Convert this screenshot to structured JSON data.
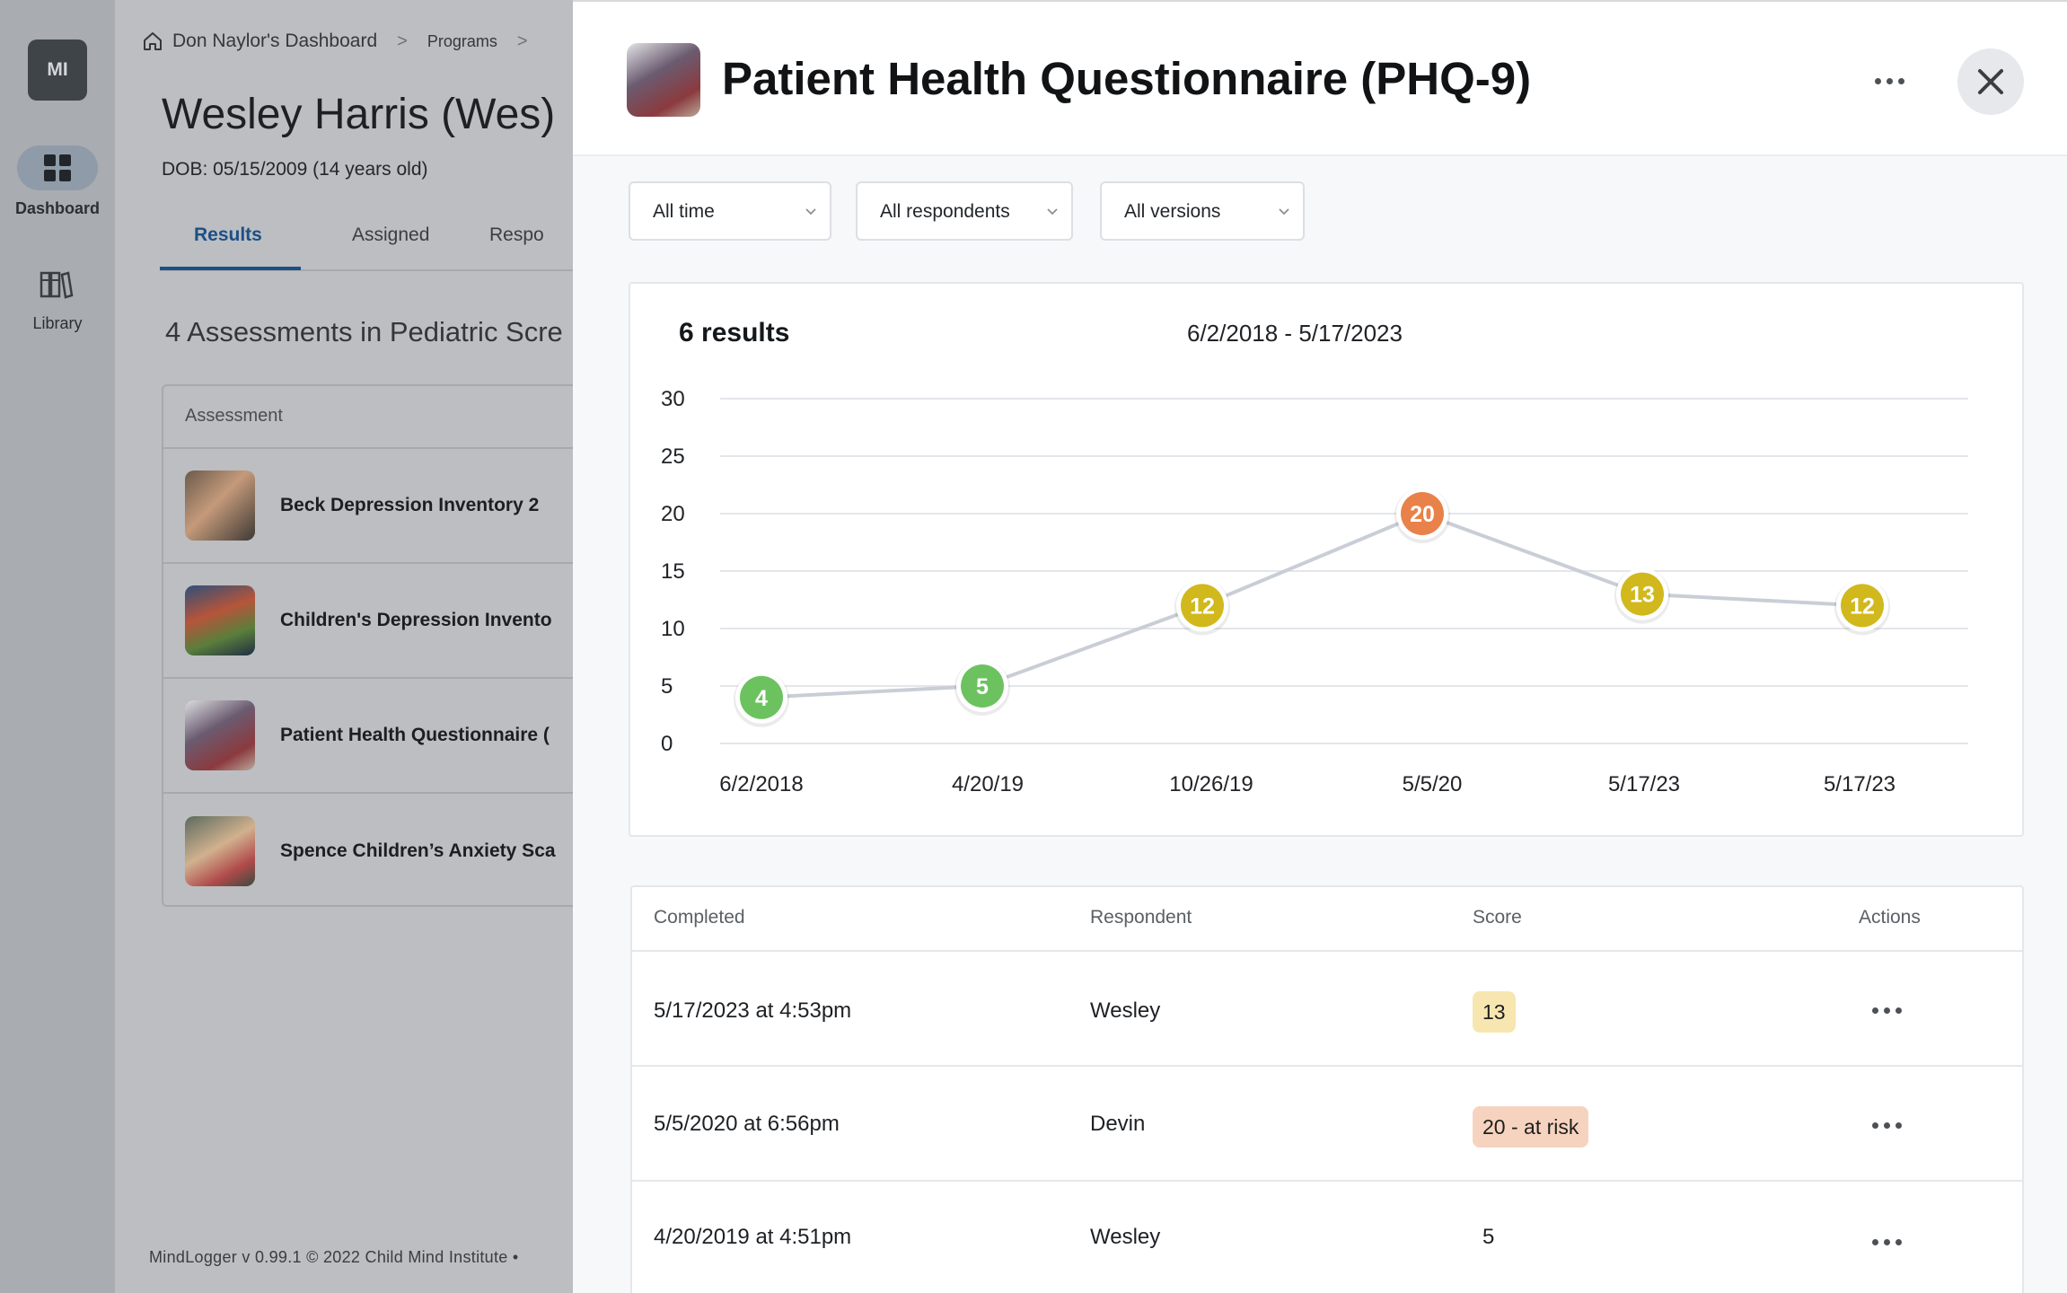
{
  "rail": {
    "avatar": "MI",
    "dashboard_label": "Dashboard",
    "library_label": "Library"
  },
  "background_page": {
    "breadcrumb_home": "Don Naylor's Dashboard",
    "breadcrumb_programs": "Programs",
    "patient_name": "Wesley Harris (Wes)",
    "dob": "DOB: 05/15/2009 (14 years old)",
    "tabs": [
      "Results",
      "Assigned",
      "Respo"
    ],
    "section_title": "4 Assessments in Pediatric Scre",
    "table_header": "Assessment",
    "assessments": [
      "Beck Depression Inventory 2",
      "Children's Depression Invento",
      "Patient Health Questionnaire (",
      "Spence Children’s Anxiety Sca"
    ],
    "footer": "MindLogger v 0.99.1 © 2022 Child Mind Institute •"
  },
  "panel": {
    "title": "Patient Health Questionnaire (PHQ-9)",
    "filters": [
      "All time",
      "All respondents",
      "All versions"
    ],
    "results_count": "6 results",
    "date_range": "6/2/2018 - 5/17/2023",
    "table": {
      "headers": [
        "Completed",
        "Respondent",
        "Score",
        "Actions"
      ],
      "rows": [
        {
          "completed": "5/17/2023 at 4:53pm",
          "respondent": "Wesley",
          "score": "13"
        },
        {
          "completed": "5/5/2020 at 6:56pm",
          "respondent": "Devin",
          "score": "20 - at risk"
        },
        {
          "completed": "4/20/2019 at 4:51pm",
          "respondent": "Wesley",
          "score": "5"
        }
      ]
    }
  },
  "colors": {
    "low": "#6cc25f",
    "moderate": "#d1b81d",
    "high": "#e8824a",
    "line": "#c9ced6",
    "grid": "#e3e6ea",
    "tab_active": "#1d4f86"
  },
  "chart_data": {
    "type": "line",
    "title": "6 results",
    "subtitle": "6/2/2018 - 5/17/2023",
    "categories": [
      "6/2/2018",
      "4/20/19",
      "10/26/19",
      "5/5/20",
      "5/17/23",
      "5/17/23"
    ],
    "values": [
      4,
      5,
      12,
      20,
      13,
      12
    ],
    "point_levels": [
      "low",
      "low",
      "moderate",
      "high",
      "moderate",
      "moderate"
    ],
    "ylim": [
      0,
      30
    ],
    "yticks": [
      0,
      5,
      10,
      15,
      20,
      25,
      30
    ],
    "grid": true,
    "xlabel": "",
    "ylabel": ""
  }
}
